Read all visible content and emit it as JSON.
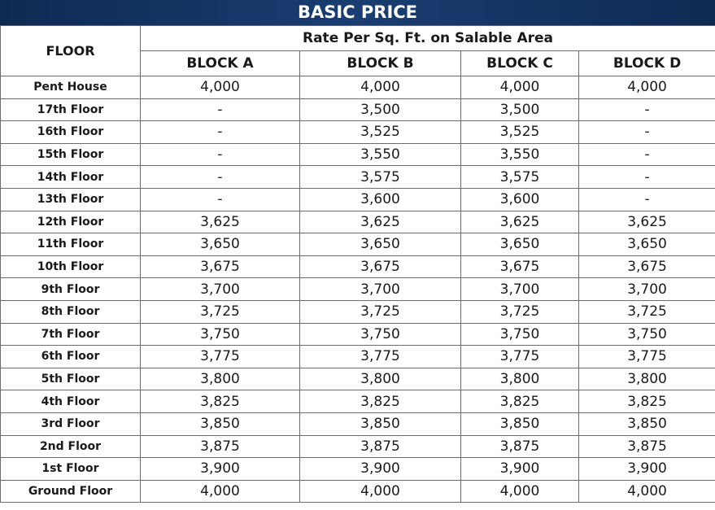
{
  "title": "BASIC PRICE",
  "header": {
    "floor_label": "FLOOR",
    "rate_label": "Rate Per Sq. Ft. on Salable Area",
    "blocks": [
      "BLOCK A",
      "BLOCK B",
      "BLOCK C",
      "BLOCK D"
    ]
  },
  "rows": [
    {
      "floor": "Pent House",
      "values": [
        "4,000",
        "4,000",
        "4,000",
        "4,000"
      ]
    },
    {
      "floor": "17th Floor",
      "values": [
        "-",
        "3,500",
        "3,500",
        "-"
      ]
    },
    {
      "floor": "16th Floor",
      "values": [
        "-",
        "3,525",
        "3,525",
        "-"
      ]
    },
    {
      "floor": "15th Floor",
      "values": [
        "-",
        "3,550",
        "3,550",
        "-"
      ]
    },
    {
      "floor": "14th Floor",
      "values": [
        "-",
        "3,575",
        "3,575",
        "-"
      ]
    },
    {
      "floor": "13th Floor",
      "values": [
        "-",
        "3,600",
        "3,600",
        "-"
      ]
    },
    {
      "floor": "12th Floor",
      "values": [
        "3,625",
        "3,625",
        "3,625",
        "3,625"
      ]
    },
    {
      "floor": "11th Floor",
      "values": [
        "3,650",
        "3,650",
        "3,650",
        "3,650"
      ]
    },
    {
      "floor": "10th Floor",
      "values": [
        "3,675",
        "3,675",
        "3,675",
        "3,675"
      ]
    },
    {
      "floor": "9th Floor",
      "values": [
        "3,700",
        "3,700",
        "3,700",
        "3,700"
      ]
    },
    {
      "floor": "8th Floor",
      "values": [
        "3,725",
        "3,725",
        "3,725",
        "3,725"
      ]
    },
    {
      "floor": "7th Floor",
      "values": [
        "3,750",
        "3,750",
        "3,750",
        "3,750"
      ]
    },
    {
      "floor": "6th Floor",
      "values": [
        "3,775",
        "3,775",
        "3,775",
        "3,775"
      ]
    },
    {
      "floor": "5th Floor",
      "values": [
        "3,800",
        "3,800",
        "3,800",
        "3,800"
      ]
    },
    {
      "floor": "4th Floor",
      "values": [
        "3,825",
        "3,825",
        "3,825",
        "3,825"
      ]
    },
    {
      "floor": "3rd Floor",
      "values": [
        "3,850",
        "3,850",
        "3,850",
        "3,850"
      ]
    },
    {
      "floor": "2nd Floor",
      "values": [
        "3,875",
        "3,875",
        "3,875",
        "3,875"
      ]
    },
    {
      "floor": "1st Floor",
      "values": [
        "3,900",
        "3,900",
        "3,900",
        "3,900"
      ]
    },
    {
      "floor": "Ground Floor",
      "values": [
        "4,000",
        "4,000",
        "4,000",
        "4,000"
      ]
    }
  ]
}
